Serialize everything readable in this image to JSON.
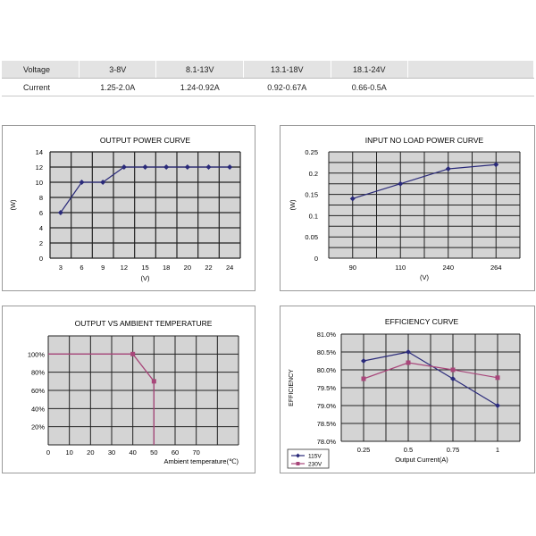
{
  "table": {
    "rows": [
      {
        "label": "Voltage",
        "cells": [
          "3-8V",
          "8.1-13V",
          "13.1-18V",
          "18.1-24V"
        ]
      },
      {
        "label": "Current",
        "cells": [
          "1.25-2.0A",
          "1.24-0.92A",
          "0.92-0.67A",
          "0.66-0.5A"
        ]
      }
    ]
  },
  "colors": {
    "grid_bg": "#d4d4d4",
    "grid_line": "#222222",
    "series_blue": "#2a2a7a",
    "series_pink": "#a8467a"
  },
  "chart_data": [
    {
      "type": "line",
      "title": "OUTPUT POWER CURVE",
      "xlabel": "(V)",
      "ylabel": "(W)",
      "categories": [
        "3",
        "6",
        "9",
        "12",
        "15",
        "18",
        "20",
        "22",
        "24"
      ],
      "series": [
        {
          "values": [
            6,
            10,
            10,
            12,
            12,
            12,
            12,
            12,
            12
          ]
        }
      ],
      "yticks": [
        "0",
        "2",
        "4",
        "6",
        "8",
        "10",
        "12",
        "14"
      ],
      "ylim": [
        0,
        14
      ],
      "grid": true
    },
    {
      "type": "line",
      "title": "INPUT NO LOAD POWER CURVE",
      "xlabel": "(V)",
      "ylabel": "(W)",
      "categories": [
        "90",
        "110",
        "240",
        "264"
      ],
      "series": [
        {
          "values": [
            0.14,
            0.175,
            0.21,
            0.22
          ]
        }
      ],
      "yticks": [
        "0",
        "0.05",
        "0.1",
        "0.15",
        "0.2",
        "0.25"
      ],
      "ylim": [
        0,
        0.25
      ],
      "grid": true
    },
    {
      "type": "line",
      "title": "OUTPUT VS AMBIENT TEMPERATURE",
      "xlabel": "Ambient temperature(℃)",
      "ylabel": "",
      "xticks": [
        "0",
        "10",
        "20",
        "30",
        "40",
        "50",
        "60",
        "70"
      ],
      "xlim": [
        0,
        90
      ],
      "yticks": [
        "20%",
        "40%",
        "60%",
        "80%",
        "100%"
      ],
      "ylim": [
        0,
        120
      ],
      "series": [
        {
          "x": [
            0,
            40,
            50,
            50
          ],
          "y": [
            100,
            100,
            70,
            0
          ]
        }
      ],
      "grid": true
    },
    {
      "type": "line",
      "title": "EFFICIENCY CURVE",
      "xlabel": "Output Current(A)",
      "ylabel": "EFFICIENCY",
      "categories": [
        "0.25",
        "0.5",
        "0.75",
        "1"
      ],
      "yticks": [
        "78.0%",
        "78.5%",
        "79.0%",
        "79.5%",
        "80.0%",
        "80.5%",
        "81.0%"
      ],
      "ylim": [
        78.0,
        81.0
      ],
      "series": [
        {
          "name": "115V",
          "values": [
            80.25,
            80.5,
            79.75,
            79.0
          ]
        },
        {
          "name": "230V",
          "values": [
            79.75,
            80.2,
            80.0,
            79.78
          ]
        }
      ],
      "legend": "bottom-left",
      "grid": true
    }
  ]
}
